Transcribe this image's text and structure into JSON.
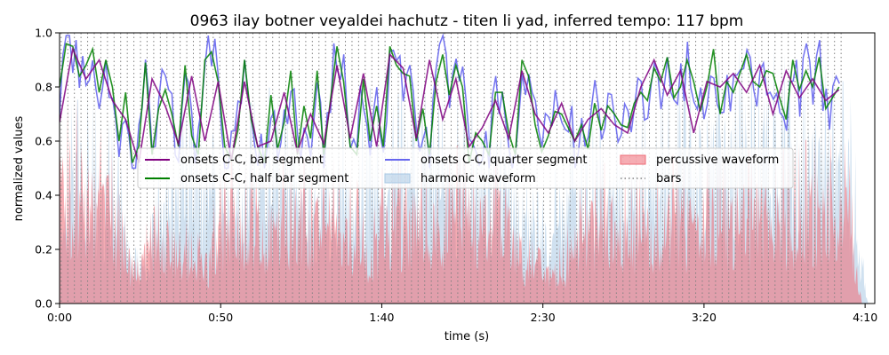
{
  "chart_data": {
    "type": "line",
    "title": "0963 ilay botner veyaldei hachutz - titen li yad, inferred tempo: 117 bpm",
    "xlabel": "time (s)",
    "ylabel": "normalized values",
    "xlim": [
      0,
      253
    ],
    "ylim": [
      0,
      1
    ],
    "x_ticks": [
      {
        "value": 0,
        "label": "0:00"
      },
      {
        "value": 50,
        "label": "0:50"
      },
      {
        "value": 100,
        "label": "1:40"
      },
      {
        "value": 150,
        "label": "2:30"
      },
      {
        "value": 200,
        "label": "3:20"
      },
      {
        "value": 250,
        "label": "4:10"
      }
    ],
    "y_ticks": [
      {
        "value": 0,
        "label": "0.0"
      },
      {
        "value": 0.2,
        "label": "0.2"
      },
      {
        "value": 0.4,
        "label": "0.4"
      },
      {
        "value": 0.6,
        "label": "0.6"
      },
      {
        "value": 0.8,
        "label": "0.8"
      },
      {
        "value": 1.0,
        "label": "1.0"
      }
    ],
    "grid": false,
    "legend_placement": "center",
    "legend": [
      {
        "label": "onsets C-C, bar segment",
        "kind": "line",
        "color": "#800080"
      },
      {
        "label": "onsets C-C, half bar segment",
        "kind": "line",
        "color": "#008000"
      },
      {
        "label": "onsets C-C, quarter segment",
        "kind": "line",
        "color": "#6666ee"
      },
      {
        "label": "harmonic waveform",
        "kind": "patch",
        "color": "#a9c8e4"
      },
      {
        "label": "percussive waveform",
        "kind": "patch",
        "color": "#ee6a75"
      },
      {
        "label": "bars",
        "kind": "dotted",
        "color": "#808080"
      }
    ],
    "bars": {
      "start": 0.5,
      "period": 2.0513,
      "end": 243
    },
    "series": [
      {
        "name": "onsets C-C, bar segment",
        "color": "#800080",
        "x": [
          0,
          4.1,
          8.2,
          12.3,
          16.4,
          20.5,
          24.6,
          28.7,
          32.8,
          36.9,
          41,
          45.1,
          49.2,
          53.3,
          57.4,
          61.5,
          65.6,
          69.7,
          73.8,
          77.9,
          82,
          86.1,
          90.2,
          94.3,
          98.4,
          102.5,
          106.6,
          110.7,
          114.8,
          118.9,
          123,
          127.1,
          131.2,
          135.3,
          139.4,
          143.5,
          147.6,
          151.7,
          155.8,
          159.9,
          164,
          168.1,
          172.2,
          176.3,
          180.4,
          184.5,
          188.6,
          192.7,
          196.8,
          200.9,
          205,
          209.1,
          213.2,
          217.3,
          221.4,
          225.5,
          229.6,
          233.7,
          237.8,
          241.9
        ],
        "y": [
          0.67,
          0.94,
          0.83,
          0.9,
          0.75,
          0.68,
          0.52,
          0.83,
          0.73,
          0.59,
          0.84,
          0.6,
          0.82,
          0.53,
          0.82,
          0.58,
          0.6,
          0.78,
          0.56,
          0.7,
          0.59,
          0.88,
          0.61,
          0.85,
          0.58,
          0.92,
          0.87,
          0.61,
          0.9,
          0.68,
          0.83,
          0.58,
          0.65,
          0.75,
          0.61,
          0.86,
          0.7,
          0.63,
          0.74,
          0.6,
          0.68,
          0.72,
          0.66,
          0.63,
          0.8,
          0.9,
          0.77,
          0.86,
          0.63,
          0.82,
          0.8,
          0.85,
          0.78,
          0.88,
          0.7,
          0.86,
          0.76,
          0.83,
          0.75,
          0.79
        ]
      },
      {
        "name": "onsets C-C, half bar segment",
        "color": "#008000",
        "x": [
          0,
          2.05,
          4.1,
          6.15,
          8.2,
          10.25,
          12.3,
          14.35,
          16.4,
          18.45,
          20.5,
          22.55,
          24.6,
          26.65,
          28.7,
          30.75,
          32.8,
          34.85,
          36.9,
          38.95,
          41,
          43.05,
          45.1,
          47.15,
          49.2,
          51.25,
          53.3,
          55.35,
          57.4,
          59.45,
          61.5,
          63.55,
          65.6,
          67.65,
          69.7,
          71.75,
          73.8,
          75.85,
          77.9,
          79.95,
          82,
          84.05,
          86.1,
          88.15,
          90.2,
          92.25,
          94.3,
          96.35,
          98.4,
          100.45,
          102.5,
          104.55,
          106.6,
          108.65,
          110.7,
          112.75,
          114.8,
          116.85,
          118.9,
          120.95,
          123,
          125.05,
          127.1,
          129.15,
          131.2,
          133.25,
          135.3,
          137.35,
          139.4,
          141.45,
          143.5,
          145.55,
          147.6,
          149.65,
          151.7,
          153.75,
          155.8,
          157.85,
          159.9,
          161.95,
          164,
          166.05,
          168.1,
          170.15,
          172.2,
          174.25,
          176.3,
          178.35,
          180.4,
          182.45,
          184.5,
          186.55,
          188.6,
          190.65,
          192.7,
          194.75,
          196.8,
          198.85,
          200.9,
          202.95,
          205,
          207.05,
          209.1,
          211.15,
          213.2,
          215.25,
          217.3,
          219.35,
          221.4,
          223.45,
          225.5,
          227.55,
          229.6,
          231.65,
          233.7,
          235.75,
          237.8,
          239.85,
          241.9
        ],
        "y": [
          0.8,
          0.96,
          0.95,
          0.84,
          0.88,
          0.94,
          0.78,
          0.9,
          0.8,
          0.6,
          0.78,
          0.52,
          0.58,
          0.89,
          0.55,
          0.72,
          0.79,
          0.7,
          0.58,
          0.88,
          0.62,
          0.55,
          0.9,
          0.93,
          0.82,
          0.58,
          0.53,
          0.64,
          0.9,
          0.68,
          0.58,
          0.52,
          0.77,
          0.57,
          0.67,
          0.86,
          0.55,
          0.73,
          0.61,
          0.86,
          0.55,
          0.75,
          0.95,
          0.82,
          0.58,
          0.55,
          0.83,
          0.6,
          0.73,
          0.58,
          0.95,
          0.88,
          0.85,
          0.84,
          0.6,
          0.72,
          0.55,
          0.82,
          0.92,
          0.77,
          0.88,
          0.8,
          0.52,
          0.63,
          0.6,
          0.55,
          0.78,
          0.78,
          0.63,
          0.55,
          0.9,
          0.84,
          0.66,
          0.56,
          0.62,
          0.71,
          0.7,
          0.65,
          0.6,
          0.66,
          0.57,
          0.74,
          0.64,
          0.73,
          0.7,
          0.66,
          0.65,
          0.74,
          0.78,
          0.75,
          0.87,
          0.82,
          0.91,
          0.76,
          0.8,
          0.9,
          0.82,
          0.71,
          0.8,
          0.94,
          0.7,
          0.82,
          0.78,
          0.85,
          0.92,
          0.82,
          0.8,
          0.86,
          0.85,
          0.76,
          0.68,
          0.9,
          0.79,
          0.86,
          0.8,
          0.91,
          0.72,
          0.76,
          0.8
        ],
        "note": ""
      },
      {
        "name": "onsets C-C, quarter segment",
        "color": "#6666ee",
        "seed": 963,
        "x_start": 0,
        "x_end": 243,
        "step": 1.0256,
        "mean_curve_source": "onsets C-C, half bar segment",
        "spread": 0.11
      }
    ],
    "areas": [
      {
        "name": "harmonic waveform",
        "color": "#a9c8e4",
        "x_start": 0,
        "x_end": 251,
        "envelope": [
          [
            0,
            0.58
          ],
          [
            10,
            0.62
          ],
          [
            18,
            0.5
          ],
          [
            22,
            0.25
          ],
          [
            26,
            0.2
          ],
          [
            30,
            0.45
          ],
          [
            36,
            0.55
          ],
          [
            44,
            0.65
          ],
          [
            50,
            0.4
          ],
          [
            56,
            0.52
          ],
          [
            62,
            0.65
          ],
          [
            70,
            0.62
          ],
          [
            80,
            0.5
          ],
          [
            90,
            0.62
          ],
          [
            96,
            0.64
          ],
          [
            102,
            0.58
          ],
          [
            110,
            0.68
          ],
          [
            118,
            0.62
          ],
          [
            126,
            0.66
          ],
          [
            136,
            0.7
          ],
          [
            146,
            0.35
          ],
          [
            152,
            0.3
          ],
          [
            158,
            0.6
          ],
          [
            166,
            0.62
          ],
          [
            174,
            0.55
          ],
          [
            182,
            0.6
          ],
          [
            190,
            0.66
          ],
          [
            198,
            0.68
          ],
          [
            206,
            0.72
          ],
          [
            214,
            0.78
          ],
          [
            222,
            0.76
          ],
          [
            230,
            0.7
          ],
          [
            238,
            0.72
          ],
          [
            243,
            0.66
          ],
          [
            246,
            0.6
          ],
          [
            248,
            0.3
          ],
          [
            250,
            0.08
          ],
          [
            251,
            0.0
          ]
        ]
      },
      {
        "name": "percussive waveform",
        "color": "#ee6a75",
        "x_start": 0,
        "x_end": 249,
        "envelope": [
          [
            0,
            0.58
          ],
          [
            4,
            0.62
          ],
          [
            10,
            0.55
          ],
          [
            16,
            0.48
          ],
          [
            20,
            0.25
          ],
          [
            24,
            0.18
          ],
          [
            30,
            0.3
          ],
          [
            36,
            0.35
          ],
          [
            40,
            0.22
          ],
          [
            46,
            0.2
          ],
          [
            50,
            0.42
          ],
          [
            56,
            0.45
          ],
          [
            62,
            0.4
          ],
          [
            70,
            0.44
          ],
          [
            78,
            0.42
          ],
          [
            86,
            0.44
          ],
          [
            92,
            0.38
          ],
          [
            96,
            0.2
          ],
          [
            100,
            0.4
          ],
          [
            108,
            0.46
          ],
          [
            118,
            0.44
          ],
          [
            126,
            0.48
          ],
          [
            132,
            0.4
          ],
          [
            138,
            0.46
          ],
          [
            144,
            0.22
          ],
          [
            150,
            0.15
          ],
          [
            156,
            0.18
          ],
          [
            162,
            0.38
          ],
          [
            170,
            0.42
          ],
          [
            180,
            0.4
          ],
          [
            188,
            0.45
          ],
          [
            196,
            0.42
          ],
          [
            204,
            0.44
          ],
          [
            212,
            0.46
          ],
          [
            220,
            0.44
          ],
          [
            228,
            0.47
          ],
          [
            236,
            0.5
          ],
          [
            242,
            0.52
          ],
          [
            245,
            0.45
          ],
          [
            247,
            0.2
          ],
          [
            249,
            0.0
          ]
        ]
      }
    ]
  }
}
